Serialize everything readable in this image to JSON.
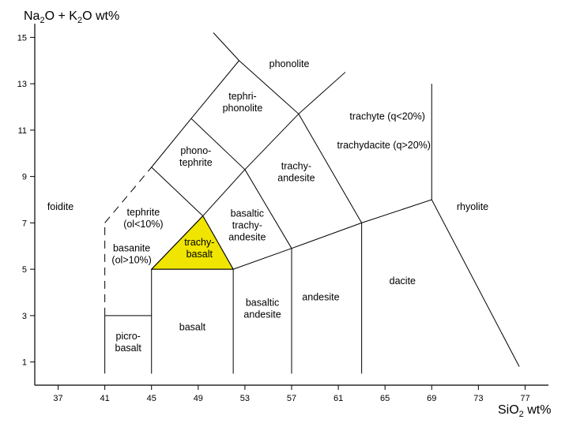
{
  "chart_data": {
    "type": "diagram",
    "title": "",
    "xlabel": {
      "pre": "SiO",
      "sub": "2",
      "post": " wt%"
    },
    "ylabel": {
      "a": "Na",
      "a_sub": "2",
      "b": "O + K",
      "b_sub": "2",
      "c": "O wt%"
    },
    "xlim": [
      35,
      79
    ],
    "ylim": [
      0,
      16
    ],
    "x_ticks": [
      37,
      41,
      45,
      49,
      53,
      57,
      61,
      65,
      69,
      73,
      77
    ],
    "y_ticks": [
      1,
      3,
      5,
      7,
      9,
      11,
      13,
      15
    ],
    "highlight_color": "#f0e500",
    "highlight_field": [
      [
        45,
        5
      ],
      [
        49.4,
        7.3
      ],
      [
        52,
        5
      ]
    ],
    "boundaries": [
      {
        "name": "picrobasalt-top",
        "points": [
          [
            41,
            3
          ],
          [
            45,
            3
          ]
        ],
        "dashed": false
      },
      {
        "name": "picrobasalt-left",
        "points": [
          [
            41,
            0.5
          ],
          [
            41,
            3
          ]
        ],
        "dashed": false
      },
      {
        "name": "basanite-left",
        "points": [
          [
            41,
            3
          ],
          [
            41,
            7
          ]
        ],
        "dashed": true
      },
      {
        "name": "foidite-dashed",
        "points": [
          [
            41,
            7
          ],
          [
            45,
            9.4
          ]
        ],
        "dashed": true
      },
      {
        "name": "basalt-left",
        "points": [
          [
            45,
            0.5
          ],
          [
            45,
            5
          ]
        ],
        "dashed": false
      },
      {
        "name": "basalt-top",
        "points": [
          [
            45,
            5
          ],
          [
            52,
            5
          ]
        ],
        "dashed": false
      },
      {
        "name": "basaltic-andesite-left",
        "points": [
          [
            52,
            0.5
          ],
          [
            52,
            5
          ]
        ],
        "dashed": false
      },
      {
        "name": "andesite-left",
        "points": [
          [
            57,
            0.5
          ],
          [
            57,
            5.9
          ]
        ],
        "dashed": false
      },
      {
        "name": "dacite-left",
        "points": [
          [
            63,
            0.5
          ],
          [
            63,
            7
          ]
        ],
        "dashed": false
      },
      {
        "name": "sub-alkaline-top",
        "points": [
          [
            52,
            5
          ],
          [
            57,
            5.9
          ],
          [
            63,
            7
          ],
          [
            69,
            8
          ]
        ],
        "dashed": false
      },
      {
        "name": "rhyolite-left",
        "points": [
          [
            69,
            8
          ],
          [
            69,
            13
          ]
        ],
        "dashed": false
      },
      {
        "name": "rhyolite-right",
        "points": [
          [
            69,
            8
          ],
          [
            76.5,
            0.8
          ]
        ],
        "dashed": false
      },
      {
        "name": "trachybasalt-left",
        "points": [
          [
            45,
            5
          ],
          [
            49.4,
            7.3
          ]
        ],
        "dashed": false
      },
      {
        "name": "trachybasalt-right",
        "points": [
          [
            49.4,
            7.3
          ],
          [
            52,
            5
          ]
        ],
        "dashed": false
      },
      {
        "name": "tephrite-top",
        "points": [
          [
            45,
            9.4
          ],
          [
            49.4,
            7.3
          ]
        ],
        "dashed": false
      },
      {
        "name": "basaltic-trachyandesite-left",
        "points": [
          [
            49.4,
            7.3
          ],
          [
            53,
            9.3
          ]
        ],
        "dashed": false
      },
      {
        "name": "trachyandesite-left",
        "points": [
          [
            53,
            9.3
          ],
          [
            57.6,
            11.7
          ]
        ],
        "dashed": false
      },
      {
        "name": "trachyandesite-bottom",
        "points": [
          [
            53,
            9.3
          ],
          [
            57,
            5.9
          ]
        ],
        "dashed": false
      },
      {
        "name": "trachyte-bottom",
        "points": [
          [
            57.6,
            11.7
          ],
          [
            63,
            7
          ]
        ],
        "dashed": false
      },
      {
        "name": "phonotephrite-left",
        "points": [
          [
            45,
            9.4
          ],
          [
            48.4,
            11.5
          ]
        ],
        "dashed": false
      },
      {
        "name": "phonotephrite-top",
        "points": [
          [
            48.4,
            11.5
          ],
          [
            53,
            9.3
          ]
        ],
        "dashed": false
      },
      {
        "name": "tephriphonolite-left",
        "points": [
          [
            48.4,
            11.5
          ],
          [
            52.5,
            14
          ]
        ],
        "dashed": false
      },
      {
        "name": "tephriphonolite-right",
        "points": [
          [
            52.5,
            14
          ],
          [
            57.6,
            11.7
          ]
        ],
        "dashed": false
      },
      {
        "name": "phonolite-left",
        "points": [
          [
            52.5,
            14
          ],
          [
            50.3,
            15.2
          ]
        ],
        "dashed": false
      },
      {
        "name": "phonolite-right",
        "points": [
          [
            57.6,
            11.7
          ],
          [
            61.6,
            13.5
          ]
        ],
        "dashed": false
      }
    ],
    "fields": [
      {
        "name": "foidite",
        "lines": [
          "foidite"
        ],
        "at": [
          37.2,
          7.7
        ]
      },
      {
        "name": "picrobasalt",
        "lines": [
          "picro-",
          "basalt"
        ],
        "at": [
          43,
          1.85
        ]
      },
      {
        "name": "basalt",
        "lines": [
          "basalt"
        ],
        "at": [
          48.5,
          2.5
        ]
      },
      {
        "name": "basaltic-andesite",
        "lines": [
          "basaltic",
          "andesite"
        ],
        "at": [
          54.5,
          3.3
        ]
      },
      {
        "name": "andesite",
        "lines": [
          "andesite"
        ],
        "at": [
          59.5,
          3.8
        ]
      },
      {
        "name": "dacite",
        "lines": [
          "dacite"
        ],
        "at": [
          66.5,
          4.5
        ]
      },
      {
        "name": "rhyolite",
        "lines": [
          "rhyolite"
        ],
        "at": [
          72.5,
          7.7
        ]
      },
      {
        "name": "trachybasalt",
        "lines": [
          "trachy-",
          "basalt"
        ],
        "at": [
          49.1,
          5.9
        ]
      },
      {
        "name": "basaltic-trachyandesite",
        "lines": [
          "basaltic",
          "trachy-",
          "andesite"
        ],
        "at": [
          53.2,
          6.9
        ]
      },
      {
        "name": "trachyandesite",
        "lines": [
          "trachy-",
          "andesite"
        ],
        "at": [
          57.4,
          9.2
        ]
      },
      {
        "name": "trachyte",
        "lines": [
          "trachyte (q<20%)"
        ],
        "at": [
          65.2,
          11.6
        ]
      },
      {
        "name": "trachydacite",
        "lines": [
          "trachydacite (q>20%)"
        ],
        "at": [
          64.9,
          10.35
        ]
      },
      {
        "name": "tephrite",
        "lines": [
          "tephrite",
          "(ol<10%)"
        ],
        "at": [
          44.3,
          7.2
        ]
      },
      {
        "name": "basanite",
        "lines": [
          "basanite",
          "(ol>10%)"
        ],
        "at": [
          43.3,
          5.65
        ]
      },
      {
        "name": "phonotephrite",
        "lines": [
          "phono-",
          "tephrite"
        ],
        "at": [
          48.8,
          9.85
        ]
      },
      {
        "name": "tephriphonolite",
        "lines": [
          "tephri-",
          "phonolite"
        ],
        "at": [
          52.8,
          12.2
        ]
      },
      {
        "name": "phonolite",
        "lines": [
          "phonolite"
        ],
        "at": [
          56.8,
          13.85
        ]
      }
    ]
  }
}
